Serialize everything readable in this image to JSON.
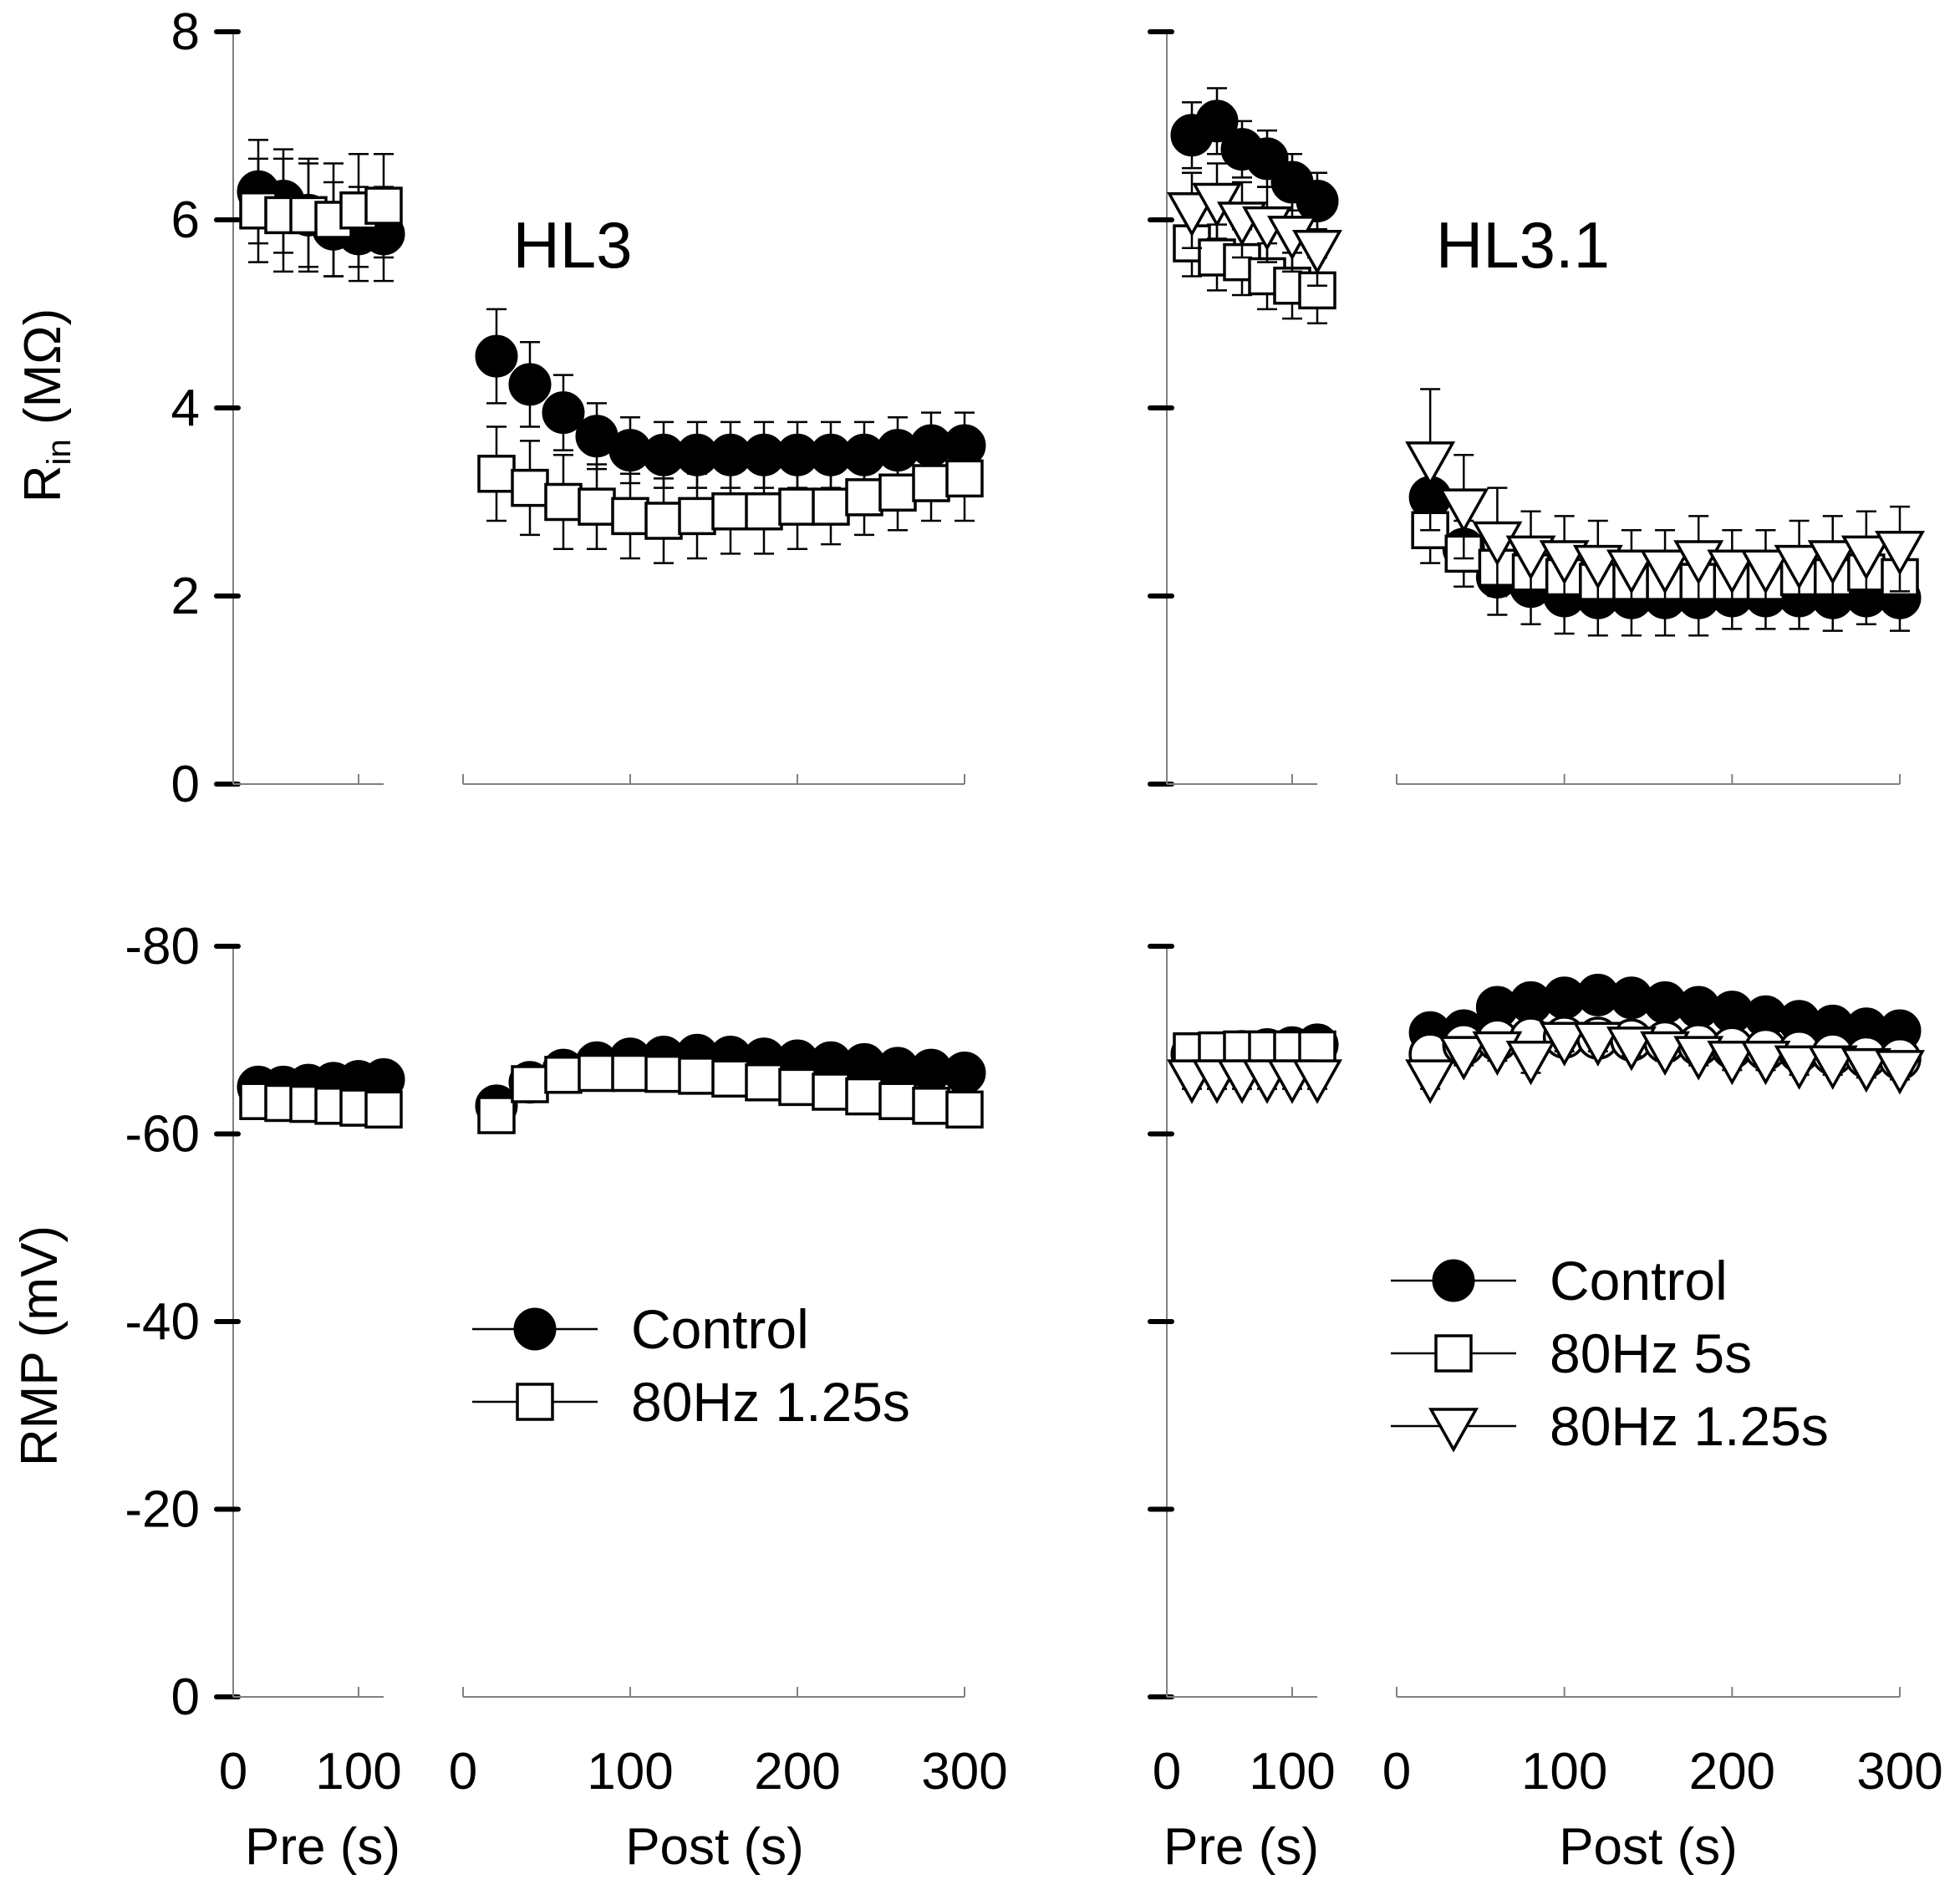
{
  "figure": {
    "titles": {
      "left": "HL3",
      "right": "HL3.1"
    },
    "ylabels": {
      "top_main": "R",
      "top_sub": "in",
      "top_unit": " (MΩ)",
      "bottom": "RMP (mV)"
    },
    "xlabels": {
      "pre": "Pre (s)",
      "post": "Post (s)"
    },
    "colors": {
      "ink": "#000000",
      "axis_gray": "#808080",
      "open_fill": "#ffffff"
    }
  },
  "chart_data": [
    {
      "id": "HL3-Rin",
      "type": "scatter",
      "title": "HL3",
      "ylabel": "Rin (MΩ)",
      "ylim": [
        0,
        8
      ],
      "yticks": [
        "0",
        "2",
        "4",
        "6",
        "8"
      ],
      "pre": {
        "xlabel": "Pre (s)",
        "xlim": [
          0,
          120
        ],
        "xticks": [
          "0",
          "100"
        ],
        "series": [
          {
            "name": "Control",
            "marker": "circle-filled",
            "x": [
              20,
              40,
              60,
              80,
              100,
              120
            ],
            "y": [
              6.3,
              6.2,
              6.05,
              5.9,
              5.85,
              5.85
            ],
            "err": [
              0.55,
              0.55,
              0.55,
              0.5,
              0.5,
              0.5
            ]
          },
          {
            "name": "80Hz 1.25s",
            "marker": "square-open",
            "x": [
              20,
              40,
              60,
              80,
              100,
              120
            ],
            "y": [
              6.1,
              6.05,
              6.05,
              6.0,
              6.1,
              6.15
            ],
            "err": [
              0.55,
              0.6,
              0.6,
              0.6,
              0.6,
              0.55
            ]
          }
        ]
      },
      "post": {
        "xlabel": "Post (s)",
        "xlim": [
          0,
          300
        ],
        "xticks": [
          "0",
          "100",
          "200",
          "300"
        ],
        "series": [
          {
            "name": "Control",
            "marker": "circle-filled",
            "x": [
              20,
              40,
              60,
              80,
              100,
              120,
              140,
              160,
              180,
              200,
              220,
              240,
              260,
              280,
              300
            ],
            "y": [
              4.55,
              4.25,
              3.95,
              3.7,
              3.55,
              3.5,
              3.5,
              3.5,
              3.5,
              3.5,
              3.5,
              3.5,
              3.55,
              3.6,
              3.6
            ],
            "err": [
              0.5,
              0.45,
              0.4,
              0.35,
              0.35,
              0.35,
              0.35,
              0.35,
              0.35,
              0.35,
              0.35,
              0.35,
              0.35,
              0.35,
              0.35
            ]
          },
          {
            "name": "80Hz 1.25s",
            "marker": "square-open",
            "x": [
              20,
              40,
              60,
              80,
              100,
              120,
              140,
              160,
              180,
              200,
              220,
              240,
              260,
              280,
              300
            ],
            "y": [
              3.3,
              3.15,
              3.0,
              2.95,
              2.85,
              2.8,
              2.85,
              2.9,
              2.9,
              2.95,
              2.95,
              3.05,
              3.1,
              3.2,
              3.25
            ],
            "err": [
              0.5,
              0.5,
              0.5,
              0.45,
              0.45,
              0.45,
              0.45,
              0.45,
              0.45,
              0.45,
              0.4,
              0.4,
              0.4,
              0.4,
              0.45
            ]
          }
        ]
      }
    },
    {
      "id": "HL3.1-Rin",
      "type": "scatter",
      "title": "HL3.1",
      "ylabel": "Rin (MΩ)",
      "ylim": [
        0,
        8
      ],
      "pre": {
        "xlabel": "Pre (s)",
        "xlim": [
          0,
          120
        ],
        "xticks": [
          "0",
          "100"
        ],
        "series": [
          {
            "name": "Control",
            "marker": "circle-filled",
            "x": [
              20,
              40,
              60,
              80,
              100,
              120
            ],
            "y": [
              6.9,
              7.05,
              6.75,
              6.65,
              6.4,
              6.2
            ],
            "err": [
              0.35,
              0.35,
              0.3,
              0.3,
              0.3,
              0.3
            ]
          },
          {
            "name": "80Hz 5s",
            "marker": "square-open",
            "x": [
              20,
              40,
              60,
              80,
              100,
              120
            ],
            "y": [
              5.75,
              5.6,
              5.55,
              5.4,
              5.3,
              5.25
            ],
            "err": [
              0.35,
              0.35,
              0.35,
              0.35,
              0.35,
              0.35
            ]
          },
          {
            "name": "80Hz 1.25s",
            "marker": "triangle-down-open",
            "x": [
              20,
              40,
              60,
              80,
              100,
              120
            ],
            "y": [
              6.1,
              6.2,
              6.0,
              5.95,
              5.85,
              5.7
            ],
            "err": [
              0.4,
              0.4,
              0.4,
              0.4,
              0.4,
              0.4
            ]
          }
        ]
      },
      "post": {
        "xlabel": "Post (s)",
        "xlim": [
          0,
          300
        ],
        "xticks": [
          "0",
          "100",
          "200",
          "300"
        ],
        "series": [
          {
            "name": "Control",
            "marker": "circle-filled",
            "x": [
              20,
              40,
              60,
              80,
              100,
              120,
              140,
              160,
              180,
              200,
              220,
              240,
              260,
              280,
              300
            ],
            "y": [
              3.05,
              2.5,
              2.2,
              2.1,
              2.0,
              1.98,
              1.98,
              1.98,
              1.98,
              2.0,
              2.0,
              2.0,
              1.98,
              2.0,
              1.98
            ],
            "err": [
              0.35,
              0.4,
              0.4,
              0.4,
              0.4,
              0.4,
              0.4,
              0.4,
              0.4,
              0.35,
              0.35,
              0.35,
              0.35,
              0.3,
              0.35
            ]
          },
          {
            "name": "80Hz 5s",
            "marker": "square-open",
            "x": [
              20,
              40,
              60,
              80,
              100,
              120,
              140,
              160,
              180,
              200,
              220,
              240,
              260,
              280,
              300
            ],
            "y": [
              2.7,
              2.45,
              2.3,
              2.25,
              2.2,
              2.15,
              2.15,
              2.15,
              2.15,
              2.15,
              2.15,
              2.2,
              2.2,
              2.25,
              2.2
            ],
            "err": [
              0.35,
              0.35,
              0.3,
              0.3,
              0.3,
              0.3,
              0.3,
              0.3,
              0.3,
              0.3,
              0.3,
              0.3,
              0.3,
              0.3,
              0.3
            ]
          },
          {
            "name": "80Hz 1.25s",
            "marker": "triangle-down-open",
            "x": [
              20,
              40,
              60,
              80,
              100,
              120,
              140,
              160,
              180,
              200,
              220,
              240,
              260,
              280,
              300
            ],
            "y": [
              3.45,
              2.95,
              2.6,
              2.45,
              2.4,
              2.35,
              2.3,
              2.3,
              2.4,
              2.3,
              2.3,
              2.35,
              2.4,
              2.45,
              2.5
            ],
            "err": [
              0.75,
              0.55,
              0.55,
              0.45,
              0.45,
              0.45,
              0.4,
              0.4,
              0.45,
              0.4,
              0.4,
              0.45,
              0.45,
              0.45,
              0.45
            ]
          }
        ]
      }
    },
    {
      "id": "HL3-RMP",
      "type": "scatter",
      "ylabel": "RMP (mV)",
      "ylim": [
        0,
        -80
      ],
      "yticks": [
        "0",
        "-20",
        "-40",
        "-60",
        "-80"
      ],
      "legend": {
        "position": "center",
        "entries": [
          "Control",
          "80Hz 1.25s"
        ]
      },
      "pre": {
        "xlabel": "Pre (s)",
        "xlim": [
          0,
          120
        ],
        "xticks": [
          "0",
          "100"
        ],
        "series": [
          {
            "name": "Control",
            "marker": "circle-filled",
            "x": [
              20,
              40,
              60,
              80,
              100,
              120
            ],
            "y": [
              -65,
              -65,
              -65.2,
              -65.4,
              -65.6,
              -65.8
            ],
            "err": [
              0.5,
              0.5,
              0.5,
              0.5,
              0.5,
              0.5
            ]
          },
          {
            "name": "80Hz 1.25s",
            "marker": "square-open",
            "x": [
              20,
              40,
              60,
              80,
              100,
              120
            ],
            "y": [
              -63.5,
              -63.3,
              -63.2,
              -63.0,
              -62.8,
              -62.6
            ],
            "err": [
              0.5,
              0.5,
              0.5,
              0.5,
              0.5,
              0.5
            ]
          }
        ]
      },
      "post": {
        "xlabel": "Post (s)",
        "xlim": [
          0,
          300
        ],
        "xticks": [
          "0",
          "100",
          "200",
          "300"
        ],
        "series": [
          {
            "name": "Control",
            "marker": "circle-filled",
            "x": [
              20,
              40,
              60,
              80,
              100,
              120,
              140,
              160,
              180,
              200,
              220,
              240,
              260,
              280,
              300
            ],
            "y": [
              -63,
              -65.5,
              -66.8,
              -67.6,
              -68,
              -68.2,
              -68.4,
              -68.2,
              -68,
              -67.8,
              -67.6,
              -67.4,
              -67,
              -66.8,
              -66.5
            ],
            "err": [
              0.5,
              0.5,
              0.5,
              0.5,
              0.5,
              0.5,
              0.5,
              0.5,
              0.5,
              0.5,
              0.5,
              0.5,
              0.5,
              0.5,
              0.5
            ]
          },
          {
            "name": "80Hz 1.25s",
            "marker": "square-open",
            "x": [
              20,
              40,
              60,
              80,
              100,
              120,
              140,
              160,
              180,
              200,
              220,
              240,
              260,
              280,
              300
            ],
            "y": [
              -62,
              -65.3,
              -66.3,
              -66.5,
              -66.5,
              -66.4,
              -66.2,
              -65.9,
              -65.5,
              -65,
              -64.5,
              -64,
              -63.5,
              -63,
              -62.6
            ],
            "err": [
              0.5,
              0.5,
              0.5,
              0.5,
              0.5,
              0.5,
              0.5,
              0.5,
              0.5,
              0.5,
              0.5,
              0.5,
              0.5,
              0.5,
              0.5
            ]
          }
        ]
      }
    },
    {
      "id": "HL3.1-RMP",
      "type": "scatter",
      "ylabel": "RMP (mV)",
      "ylim": [
        0,
        -80
      ],
      "legend": {
        "position": "center-right",
        "entries": [
          "Control",
          "80Hz 5s",
          "80Hz 1.25s"
        ]
      },
      "pre": {
        "xlabel": "Pre (s)",
        "xlim": [
          0,
          120
        ],
        "xticks": [
          "0",
          "100"
        ],
        "series": [
          {
            "name": "Control",
            "marker": "circle-filled",
            "x": [
              20,
              40,
              60,
              80,
              100,
              120
            ],
            "y": [
              -68.5,
              -68.6,
              -68.8,
              -69,
              -69.2,
              -69.5
            ],
            "err": [
              0.8,
              0.8,
              0.8,
              0.8,
              0.8,
              0.8
            ]
          },
          {
            "name": "80Hz 5s",
            "marker": "square-open",
            "x": [
              20,
              40,
              60,
              80,
              100,
              120
            ],
            "y": [
              -68.8,
              -68.9,
              -69,
              -69,
              -69,
              -69
            ],
            "err": [
              0.8,
              0.8,
              0.8,
              0.8,
              0.8,
              0.8
            ]
          },
          {
            "name": "80Hz 1.25s",
            "marker": "triangle-down-open",
            "x": [
              20,
              40,
              60,
              80,
              100,
              120
            ],
            "y": [
              -66,
              -66,
              -66,
              -66,
              -66,
              -66
            ],
            "err": [
              1.2,
              1.2,
              1.2,
              1.2,
              1.2,
              1.2
            ]
          }
        ]
      },
      "post": {
        "xlabel": "Post (s)",
        "xlim": [
          0,
          300
        ],
        "xticks": [
          "0",
          "100",
          "200",
          "300"
        ],
        "series": [
          {
            "name": "Control",
            "marker": "circle-filled",
            "x": [
              20,
              40,
              60,
              80,
              100,
              120,
              140,
              160,
              180,
              200,
              220,
              240,
              260,
              280,
              300
            ],
            "y": [
              -70.8,
              -71,
              -73.5,
              -74,
              -74.5,
              -74.8,
              -74.5,
              -74,
              -73.5,
              -73,
              -72.5,
              -72,
              -71.5,
              -71.2,
              -71
            ],
            "err": [
              0.5,
              0.5,
              0.5,
              0.5,
              0.5,
              0.5,
              0.5,
              0.5,
              0.5,
              0.5,
              0.5,
              0.5,
              0.5,
              0.5,
              0.5
            ]
          },
          {
            "name": "80Hz 5s",
            "marker": "circle-open",
            "x": [
              20,
              40,
              60,
              80,
              100,
              120,
              140,
              160,
              180,
              200,
              220,
              240,
              260,
              280,
              300
            ],
            "y": [
              -68.5,
              -69.5,
              -70,
              -70.2,
              -70.3,
              -70.2,
              -70,
              -69.8,
              -69.5,
              -69.2,
              -69,
              -68.8,
              -68.5,
              -68.2,
              -68
            ],
            "err": [
              0.5,
              0.5,
              0.5,
              0.5,
              0.5,
              0.5,
              0.5,
              0.5,
              0.5,
              0.5,
              0.5,
              0.5,
              0.5,
              0.5,
              0.5
            ]
          },
          {
            "name": "80Hz 1.25s",
            "marker": "triangle-down-open",
            "x": [
              20,
              40,
              60,
              80,
              100,
              120,
              140,
              160,
              180,
              200,
              220,
              240,
              260,
              280,
              300
            ],
            "y": [
              -66,
              -68.5,
              -69,
              -68,
              -70,
              -70,
              -69.5,
              -69,
              -68.5,
              -68,
              -68,
              -67.5,
              -67.5,
              -67.2,
              -67
            ],
            "err": [
              1.2,
              1.2,
              1.2,
              1.5,
              1.2,
              1.2,
              1.2,
              1.2,
              1.2,
              1.2,
              1.2,
              1.2,
              1.2,
              1.2,
              1.2
            ]
          }
        ]
      }
    }
  ]
}
